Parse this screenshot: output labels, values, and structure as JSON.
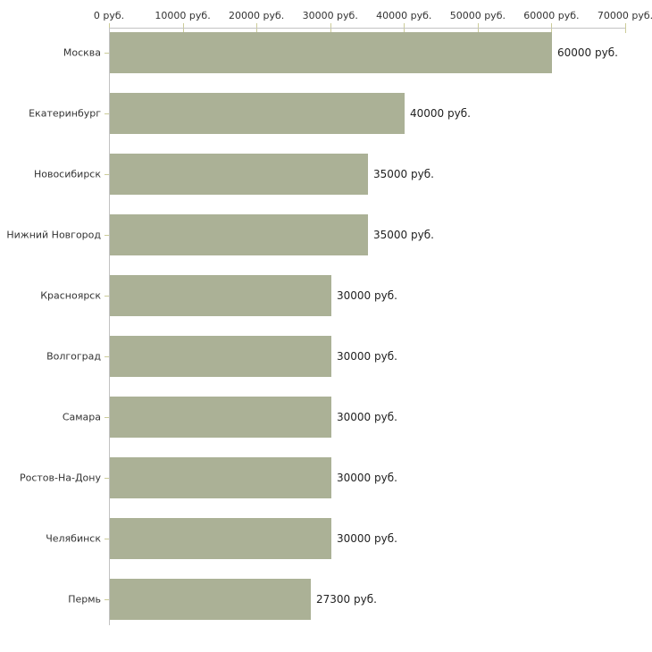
{
  "chart_data": {
    "type": "bar",
    "orientation": "horizontal",
    "title": "",
    "xlabel": "",
    "ylabel": "",
    "categories": [
      "Москва",
      "Екатеринбург",
      "Новосибирск",
      "Нижний Новгород",
      "Красноярск",
      "Волгоград",
      "Самара",
      "Ростов-На-Дону",
      "Челябинск",
      "Пермь"
    ],
    "values": [
      60000,
      40000,
      35000,
      35000,
      30000,
      30000,
      30000,
      30000,
      30000,
      27300
    ],
    "value_labels": [
      "60000 руб.",
      "40000 руб.",
      "35000 руб.",
      "35000 руб.",
      "30000 руб.",
      "30000 руб.",
      "30000 руб.",
      "30000 руб.",
      "30000 руб.",
      "27300 руб."
    ],
    "x_axis": {
      "position": "top",
      "range": [
        0,
        70000
      ],
      "ticks": [
        0,
        10000,
        20000,
        30000,
        40000,
        50000,
        60000,
        70000
      ],
      "tick_labels": [
        "0 руб.",
        "10000 руб.",
        "20000 руб.",
        "30000 руб.",
        "40000 руб.",
        "50000 руб.",
        "60000 руб.",
        "70000 руб."
      ]
    },
    "grid": false,
    "legend": false,
    "colors": {
      "background": "#ffffff",
      "bar": "#abb196",
      "axis_line": "#c2c2c2",
      "tick_mark": "#cccc99",
      "label_text": "#333333",
      "value_text": "#222222"
    }
  }
}
